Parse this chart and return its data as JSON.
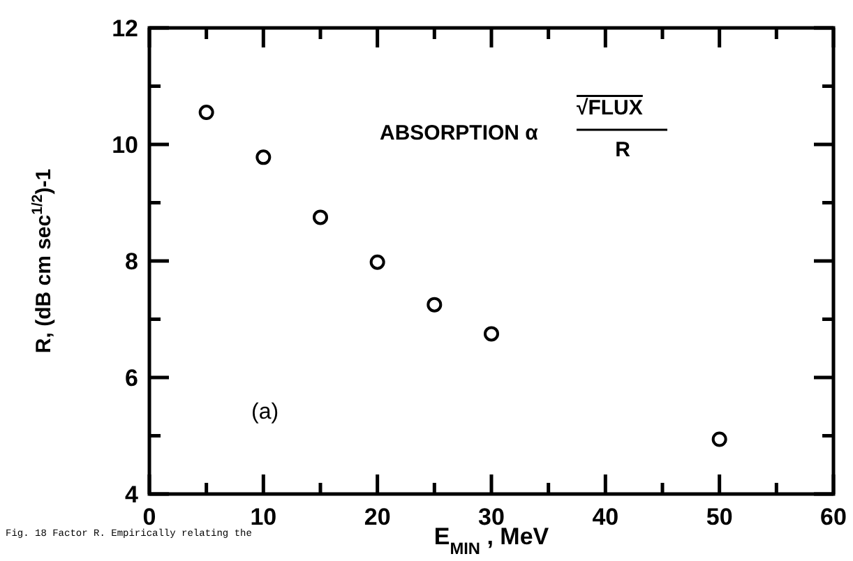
{
  "chart_data": {
    "type": "scatter",
    "xlabel": "E$_{MIN}$ , MeV",
    "ylabel": "R, (dB cm sec$^{1/2}$)-1",
    "x": [
      5,
      10,
      15,
      20,
      25,
      30,
      50
    ],
    "series": [
      {
        "color": "#000000",
        "values": [
          10.55,
          9.78,
          8.75,
          7.98,
          7.25,
          6.75,
          4.94
        ]
      }
    ],
    "marker": "circle",
    "grid": false,
    "xlim": [
      0,
      60
    ],
    "xticks": [
      0,
      {
        "value": 5,
        "label": null
      },
      10,
      {
        "value": 15,
        "label": null
      },
      20,
      {
        "value": 25,
        "label": null
      },
      30,
      {
        "value": 35,
        "label": null
      },
      40,
      {
        "value": 45,
        "label": null
      },
      50,
      {
        "value": 55,
        "label": null
      },
      60
    ],
    "ylim": [
      4,
      12
    ],
    "yticks": [
      4,
      {
        "value": 5,
        "label": null
      },
      6,
      {
        "value": 7,
        "label": null
      },
      8,
      {
        "value": 9,
        "label": null
      },
      10,
      {
        "value": 11,
        "label": null
      },
      12
    ],
    "annotations": [
      "ABSORPTION α",
      "√FLUX",
      "R",
      "(a)",
      "Fig. 18  Factor R. Empirically relating the"
    ]
  }
}
